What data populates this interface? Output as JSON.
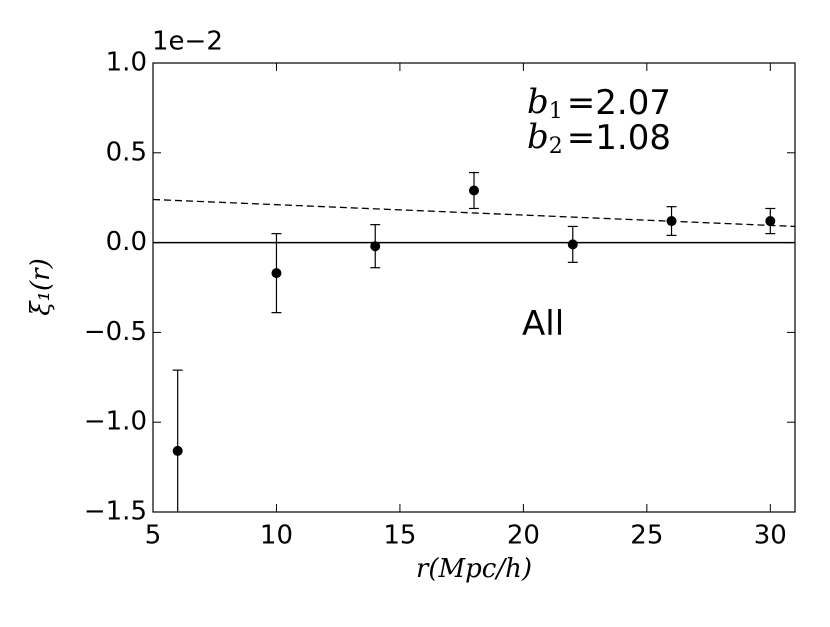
{
  "chart_data": {
    "type": "errorbar",
    "x_label": "r(Mpc/h)",
    "y_label": "ξ₁(r)",
    "y_offset_label": "1e−2",
    "xlim": [
      5,
      31
    ],
    "xticks": [
      5,
      10,
      15,
      20,
      25,
      30
    ],
    "ylim": [
      -1.5,
      1.0
    ],
    "yticks": [
      {
        "value": -1.5,
        "label": "−1.5"
      },
      {
        "value": -1.0,
        "label": "−1.0"
      },
      {
        "value": -0.5,
        "label": "−0.5"
      },
      {
        "value": 0,
        "label": "0.0"
      },
      0.5,
      {
        "value": 1.0,
        "label": "1.0"
      }
    ],
    "hline": 0,
    "series": [
      {
        "color": "#000000",
        "x": [
          6,
          10,
          14,
          18,
          22,
          26,
          30
        ],
        "values": [
          -1.16,
          -0.17,
          -0.02,
          0.29,
          -0.01,
          0.12,
          0.12
        ],
        "errors": [
          0.45,
          0.22,
          0.12,
          0.1,
          0.1,
          0.08,
          0.07
        ]
      }
    ],
    "model": {
      "color": "#000000",
      "x": [
        5,
        31
      ],
      "values": [
        0.24,
        0.09
      ]
    },
    "annotations": [
      {
        "symbol": "b",
        "subscript": "1",
        "text": "=2.07"
      },
      {
        "symbol": "b",
        "subscript": "2",
        "text": "=1.08"
      },
      {
        "text": "All"
      }
    ]
  }
}
